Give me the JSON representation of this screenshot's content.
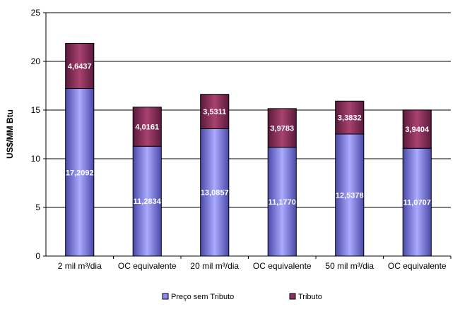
{
  "chart_data": {
    "type": "bar",
    "stacked": true,
    "categories": [
      "2 mil m³/dia",
      "OC equivalente",
      "20 mil m³/dia",
      "OC equivalente",
      "50 mil m³/dia",
      "OC equivalente"
    ],
    "series": [
      {
        "name": "Preço sem Tributo",
        "values": [
          17.2092,
          11.2834,
          13.0857,
          11.177,
          12.5378,
          11.0707
        ],
        "labels": [
          "17,2092",
          "11,2834",
          "13,0857",
          "11,1770",
          "12,5378",
          "11,0707"
        ],
        "color": "#8c8cf0"
      },
      {
        "name": "Tributo",
        "values": [
          4.6437,
          4.0161,
          3.5311,
          3.9783,
          3.3832,
          3.9404
        ],
        "labels": [
          "4,6437",
          "4,0161",
          "3,5311",
          "3,9783",
          "3,3832",
          "3,9404"
        ],
        "color": "#8e2e5e"
      }
    ],
    "title": "",
    "xlabel": "",
    "ylabel": "US$/MM Btu",
    "ylim": [
      0,
      25
    ],
    "yticks": [
      0,
      5,
      10,
      15,
      20,
      25
    ],
    "grid": true,
    "legend_position": "bottom"
  }
}
